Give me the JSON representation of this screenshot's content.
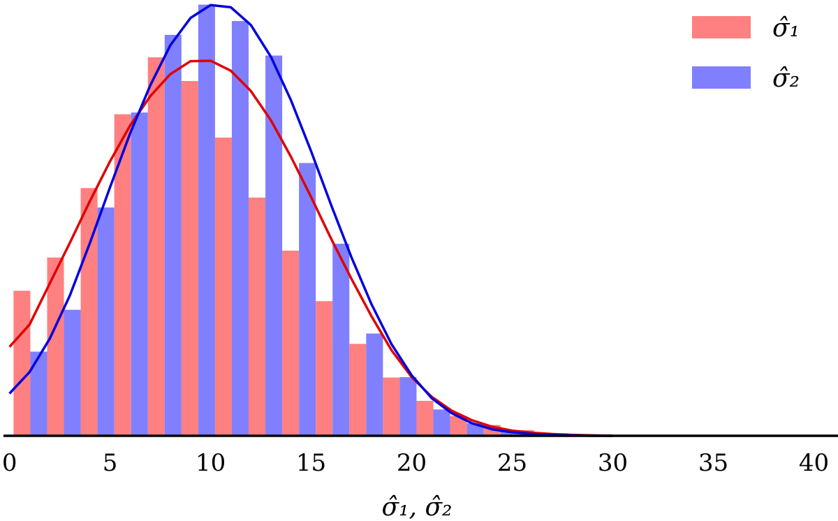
{
  "chart_data": {
    "type": "bar",
    "xlabel": "σ̂₁, σ̂₂",
    "ylabel": "",
    "title": "",
    "xlim": [
      -0.3,
      41.2
    ],
    "ylim": [
      0,
      1.0
    ],
    "xticks": [
      0,
      5,
      10,
      15,
      20,
      25,
      30,
      35,
      40
    ],
    "legend_position": "top-right",
    "grid": false,
    "bin_width": 1.67,
    "bin_starts": [
      0.2,
      1.87,
      3.54,
      5.21,
      6.88,
      8.55,
      10.22,
      11.89,
      13.56,
      15.23,
      16.9,
      18.57,
      20.24,
      21.91,
      23.58,
      25.25,
      26.92,
      28.59,
      30.26
    ],
    "series": [
      {
        "name": "σ̂₁",
        "color": "#ff8080",
        "curve_color": "#e00000",
        "values": [
          0.336,
          0.413,
          0.574,
          0.745,
          0.877,
          0.822,
          0.691,
          0.552,
          0.429,
          0.312,
          0.213,
          0.135,
          0.081,
          0.046,
          0.025,
          0.013,
          0.006,
          0.002,
          0.0
        ],
        "curve": {
          "x": [
            0,
            1,
            2,
            3,
            4,
            5,
            6,
            7,
            8,
            9,
            10,
            11,
            12,
            13,
            14,
            15,
            16,
            17,
            18,
            19,
            20,
            21,
            22,
            23,
            24,
            25,
            26,
            27,
            28,
            29,
            30
          ],
          "y": [
            0.206,
            0.258,
            0.353,
            0.447,
            0.544,
            0.636,
            0.719,
            0.787,
            0.838,
            0.868,
            0.869,
            0.846,
            0.799,
            0.731,
            0.646,
            0.553,
            0.456,
            0.364,
            0.277,
            0.198,
            0.136,
            0.09,
            0.058,
            0.036,
            0.021,
            0.012,
            0.007,
            0.004,
            0.002,
            0.001,
            0.0
          ]
        }
      },
      {
        "name": "σ̂₂",
        "color": "#8080ff",
        "curve_color": "#0000dd",
        "values": [
          0.195,
          0.292,
          0.529,
          0.749,
          0.929,
          0.999,
          0.961,
          0.881,
          0.632,
          0.445,
          0.237,
          0.136,
          0.061,
          0.029,
          0.013,
          0.006,
          0.002,
          0.0,
          0.0
        ],
        "curve": {
          "x": [
            0,
            1,
            2,
            3,
            4,
            5,
            6,
            7,
            8,
            9,
            10,
            11,
            12,
            13,
            14,
            15,
            16,
            17,
            18,
            19,
            20,
            21,
            22,
            23,
            24,
            25,
            26,
            27,
            28,
            29,
            30
          ],
          "y": [
            0.098,
            0.148,
            0.225,
            0.325,
            0.447,
            0.576,
            0.701,
            0.812,
            0.905,
            0.968,
            0.998,
            0.993,
            0.952,
            0.878,
            0.777,
            0.659,
            0.534,
            0.414,
            0.305,
            0.212,
            0.14,
            0.087,
            0.052,
            0.029,
            0.015,
            0.008,
            0.004,
            0.002,
            0.001,
            0.0,
            0.0
          ]
        }
      }
    ]
  }
}
